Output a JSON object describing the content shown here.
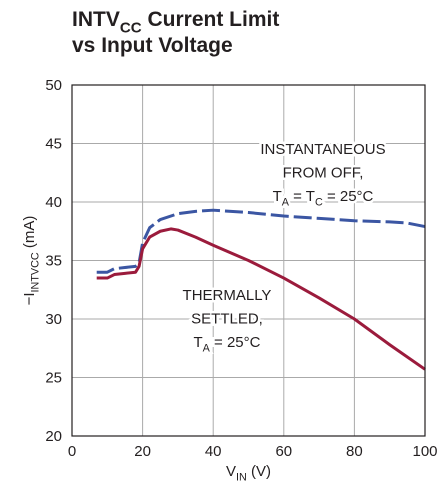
{
  "chart_data": {
    "type": "line",
    "title": [
      [
        {
          "t": "INTV"
        },
        {
          "sub": "CC"
        },
        {
          "t": " Current Limit"
        }
      ],
      [
        {
          "t": "vs Input Voltage"
        }
      ]
    ],
    "xlabel": [
      {
        "t": "V"
      },
      {
        "sub": "IN"
      },
      {
        "t": " (V)"
      }
    ],
    "ylabel": [
      {
        "t": "−I"
      },
      {
        "sub": "INTVCC"
      },
      {
        "t": " (mA)"
      }
    ],
    "xlim": [
      0,
      100
    ],
    "xticks": [
      0,
      20,
      40,
      60,
      80,
      100
    ],
    "ylim": [
      20,
      50
    ],
    "yticks": [
      20,
      25,
      30,
      35,
      40,
      45,
      50
    ],
    "grid": true,
    "series": [
      {
        "color": "#3b56a3",
        "dashed": true,
        "x": [
          7,
          10,
          12,
          15,
          18,
          19,
          20,
          22,
          25,
          30,
          35,
          40,
          50,
          60,
          70,
          80,
          90,
          95,
          100
        ],
        "values": [
          34.0,
          34.0,
          34.3,
          34.4,
          34.5,
          34.8,
          36.5,
          37.8,
          38.5,
          39.0,
          39.2,
          39.3,
          39.1,
          38.8,
          38.6,
          38.4,
          38.3,
          38.2,
          37.9
        ]
      },
      {
        "color": "#9b1b3c",
        "dashed": false,
        "x": [
          7,
          10,
          12,
          15,
          18,
          19,
          20,
          22,
          25,
          28,
          30,
          35,
          40,
          50,
          60,
          70,
          80,
          90,
          100
        ],
        "values": [
          33.5,
          33.5,
          33.8,
          33.9,
          34.0,
          34.5,
          36.0,
          37.0,
          37.5,
          37.7,
          37.6,
          37.0,
          36.3,
          35.0,
          33.5,
          31.8,
          30.0,
          27.8,
          25.7
        ]
      }
    ],
    "annotations": [
      {
        "lines": [
          [
            {
              "t": "INSTANTANEOUS"
            }
          ],
          [
            {
              "t": "FROM OFF,"
            }
          ],
          [
            {
              "t": "T"
            },
            {
              "sub": "A"
            },
            {
              "t": " = T"
            },
            {
              "sub": "C"
            },
            {
              "t": " = 25°C"
            }
          ]
        ]
      },
      {
        "lines": [
          [
            {
              "t": "THERMALLY"
            }
          ],
          [
            {
              "t": "SETTLED,"
            }
          ],
          [
            {
              "t": "T"
            },
            {
              "sub": "A"
            },
            {
              "t": " = 25°C"
            }
          ]
        ]
      }
    ]
  }
}
